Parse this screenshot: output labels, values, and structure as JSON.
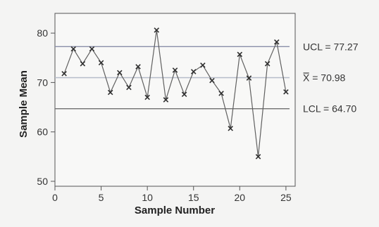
{
  "chart_data": {
    "type": "line",
    "xlabel": "Sample Number",
    "ylabel": "Sample Mean",
    "xlim": [
      0,
      26
    ],
    "ylim": [
      49,
      84
    ],
    "xticks": [
      0,
      5,
      10,
      15,
      20,
      25
    ],
    "yticks": [
      50,
      60,
      70,
      80
    ],
    "reference_lines": [
      {
        "value": 77.27,
        "label": "UCL = 77.27"
      },
      {
        "value": 70.98,
        "label": "X̿ = 70.98"
      },
      {
        "value": 64.7,
        "label": "LCL = 64.70"
      }
    ],
    "x": [
      1,
      2,
      3,
      4,
      5,
      6,
      7,
      8,
      9,
      10,
      11,
      12,
      13,
      14,
      15,
      16,
      17,
      18,
      19,
      20,
      21,
      22,
      23,
      24,
      25
    ],
    "y": [
      71.8,
      76.8,
      73.8,
      76.8,
      74.0,
      68.0,
      72.0,
      69.0,
      73.2,
      67.0,
      80.6,
      66.5,
      72.5,
      67.6,
      72.2,
      73.5,
      70.4,
      67.8,
      60.7,
      75.7,
      70.9,
      55.0,
      73.8,
      78.2,
      68.1
    ],
    "colors": {
      "line": "#606060",
      "marker": "#303030",
      "ref_line": "#707070",
      "ucl": "#8a8fa8",
      "cl": "#b6bcc9"
    }
  }
}
